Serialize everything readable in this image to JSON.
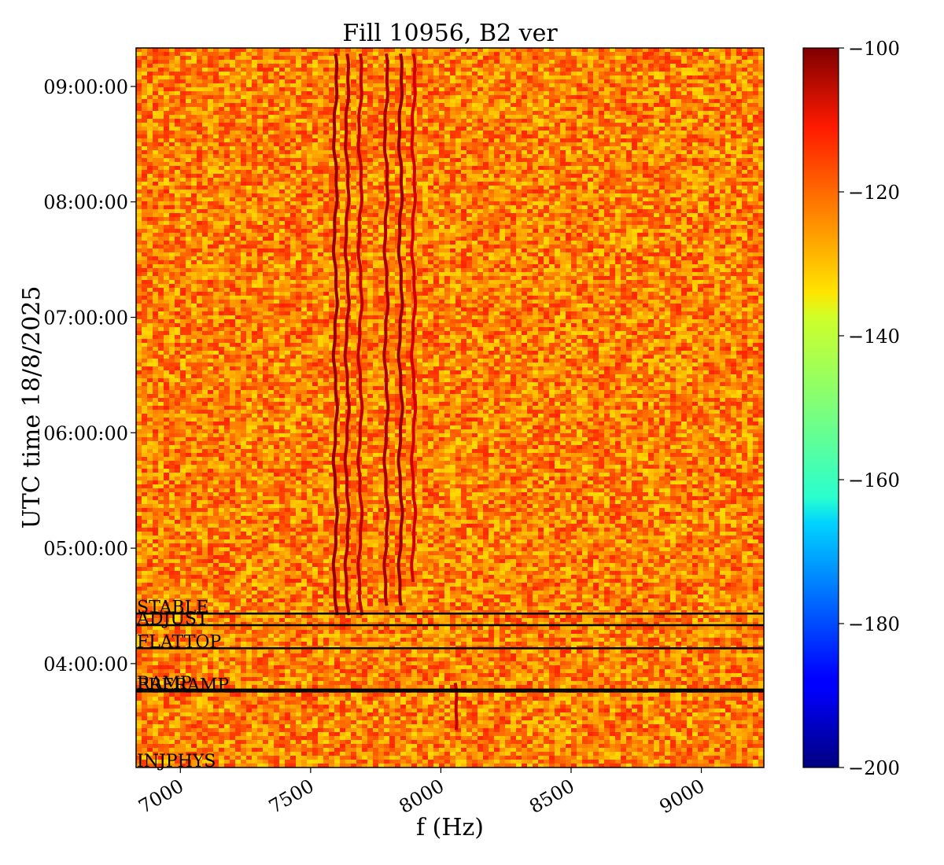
{
  "chart_data": {
    "type": "heatmap",
    "title": "Fill 10956, B2 ver",
    "xlabel": "f (Hz)",
    "ylabel": "UTC time 18/8/2025",
    "xlim": [
      6830,
      9240
    ],
    "x_ticks": [
      7000,
      7500,
      8000,
      8500,
      9000
    ],
    "x_tick_labels": [
      "7000",
      "7500",
      "8000",
      "8500",
      "9000"
    ],
    "ylim": [
      "03:06:00",
      "09:20:00"
    ],
    "y_ticks": [
      "04:00:00",
      "05:00:00",
      "06:00:00",
      "07:00:00",
      "08:00:00",
      "09:00:00"
    ],
    "y_tick_labels": [
      "04:00:00",
      "05:00:00",
      "06:00:00",
      "07:00:00",
      "08:00:00",
      "09:00:00"
    ],
    "colorbar": {
      "colormap": "jet",
      "range": [
        -200,
        -100
      ],
      "ticks": [
        -100,
        -120,
        -140,
        -160,
        -180,
        -200
      ],
      "tick_labels": [
        "−100",
        "−120",
        "−140",
        "−160",
        "−180",
        "−200"
      ]
    },
    "background_level": -125,
    "event_markers": [
      {
        "label": "STABLE",
        "time": "04:26:00"
      },
      {
        "label": "ADJUST",
        "time": "04:20:00"
      },
      {
        "label": "FLATTOP",
        "time": "04:08:00"
      },
      {
        "label": "RAMP",
        "time": "03:46:30"
      },
      {
        "label": "PRERAMP",
        "time": "03:45:30"
      },
      {
        "label": "INJPHYS",
        "time": "03:06:00"
      }
    ],
    "spectral_lines": [
      {
        "f": 7595,
        "level": -102,
        "from": "04:23:00",
        "to": "09:17:00"
      },
      {
        "f": 7640,
        "level": -104,
        "from": "04:23:00",
        "to": "09:17:00"
      },
      {
        "f": 7690,
        "level": -106,
        "from": "04:25:00",
        "to": "09:17:00"
      },
      {
        "f": 7790,
        "level": -104,
        "from": "04:30:00",
        "to": "09:17:00"
      },
      {
        "f": 7845,
        "level": -102,
        "from": "04:30:00",
        "to": "09:17:00"
      },
      {
        "f": 7895,
        "level": -108,
        "from": "04:40:00",
        "to": "09:17:00"
      },
      {
        "f": 8055,
        "level": -106,
        "from": "03:25:00",
        "to": "03:50:00"
      }
    ]
  }
}
